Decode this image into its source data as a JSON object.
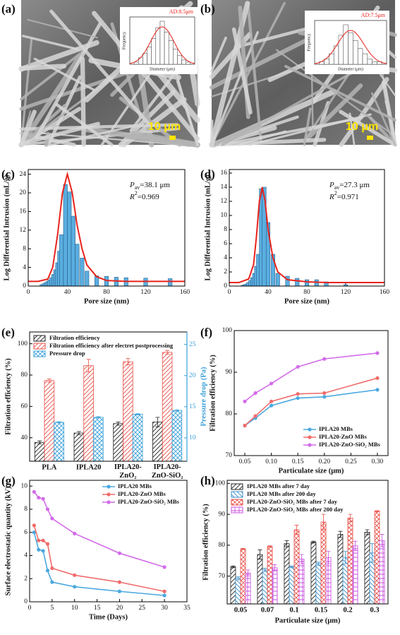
{
  "images": [
    {
      "label": "(a)",
      "scale_bar": "10 μm",
      "inset": {
        "annotation": "AD:8.5μm",
        "x_label": "Diameter (μm)",
        "y_label": "Frequency",
        "values": [
          1,
          3,
          5,
          8,
          12,
          17,
          20,
          15,
          11,
          7,
          4,
          2,
          1
        ]
      }
    },
    {
      "label": "(b)",
      "scale_bar": "10 μm",
      "inset": {
        "annotation": "AD:7.5μm",
        "x_label": "Diameter (μm)",
        "y_label": "Frequency",
        "values": [
          1,
          2,
          4,
          7,
          11,
          15,
          12,
          9,
          6,
          4,
          2,
          1,
          1
        ]
      }
    }
  ],
  "chart_data": [
    {
      "type": "bar",
      "label": "(c)",
      "x_label": "Pore size (nm)",
      "y_label": "Log Differential Intrusion (mL/g)",
      "color": "#5aaee0",
      "x": [
        14,
        16,
        18,
        20,
        22,
        24,
        26,
        28,
        30,
        32,
        34,
        38,
        42,
        46,
        50,
        55,
        60,
        70,
        80,
        90,
        100,
        120,
        145
      ],
      "values": [
        0.3,
        0.5,
        0.7,
        1,
        1.3,
        1.8,
        2.5,
        3.5,
        5,
        7.5,
        11,
        21.8,
        20.2,
        15,
        9,
        6,
        3.2,
        2.2,
        2.1,
        1.9,
        1.8,
        1.7,
        1.6
      ],
      "fit": {
        "color": "#e8231d",
        "x": [
          0,
          10,
          20,
          25,
          30,
          35,
          40,
          45,
          50,
          55,
          60,
          70,
          80,
          100,
          160
        ],
        "values": [
          1,
          1,
          1.5,
          4,
          11,
          20,
          24,
          20,
          13,
          8,
          4.5,
          2,
          1.2,
          1,
          1
        ]
      },
      "annotations": [
        {
          "main": "P",
          "sub": "av",
          "rest": "=38.1 μm"
        },
        {
          "main": "R",
          "sup": "2",
          "rest": "=0.969"
        }
      ],
      "xlim": [
        0,
        160
      ],
      "xticks": [
        0,
        40,
        80,
        120,
        160
      ],
      "ylim": [
        0,
        25
      ],
      "yticks": [
        0,
        4,
        8,
        12,
        16,
        20,
        24
      ]
    },
    {
      "type": "bar",
      "label": "(d)",
      "x_label": "Pore size (nm)",
      "y_label": "Log Differential Intrusion (mL/g)",
      "color": "#5aaee0",
      "x": [
        14,
        16,
        18,
        20,
        22,
        24,
        26,
        28,
        30,
        33,
        36,
        40,
        45,
        50,
        60,
        70,
        80,
        90,
        100,
        120
      ],
      "values": [
        0.1,
        0.2,
        0.3,
        0.5,
        0.8,
        1.2,
        1.8,
        2.8,
        4.5,
        13.8,
        14,
        9,
        4.5,
        1.8,
        1.4,
        1.1,
        0.9,
        0.9,
        0.6,
        0.2
      ],
      "fit": {
        "color": "#e8231d",
        "x": [
          0,
          10,
          20,
          25,
          28,
          31,
          34,
          37,
          40,
          45,
          50,
          60,
          80,
          100,
          160
        ],
        "values": [
          0.5,
          0.5,
          1,
          3,
          7,
          12,
          14,
          12,
          8,
          4,
          2,
          0.9,
          0.6,
          0.5,
          0.5
        ]
      },
      "annotations": [
        {
          "main": "P",
          "sub": "av",
          "rest": "=27.3 μm"
        },
        {
          "main": "R",
          "sup": "2",
          "rest": "=0.971"
        }
      ],
      "xlim": [
        0,
        160
      ],
      "xticks": [
        0,
        40,
        80,
        120,
        160
      ],
      "ylim": [
        0,
        16.5
      ],
      "yticks": [
        0,
        2,
        4,
        6,
        8,
        10,
        12,
        14,
        16
      ]
    },
    {
      "type": "grouped_bar",
      "label": "(e)",
      "y_label": "Filtration efficiency (%)",
      "y2_label": "Pressure drop (Pa)",
      "y2_color": "#3aa0d8",
      "legend": "top-left",
      "categories": [
        "PLA",
        "IPLA20",
        "IPLA20-ZnO₂",
        "IPLA20-ZnO-SiO₂"
      ],
      "series": [
        {
          "name": "Filtration efficiency",
          "color": "#222222",
          "pattern": "diagonal",
          "values": [
            37,
            43,
            49,
            50
          ],
          "errors": [
            1,
            1,
            1,
            3
          ]
        },
        {
          "name": "Filtration efficiency after electret postprocessing",
          "color": "#e8524a",
          "pattern": "diagonal",
          "values": [
            76.5,
            86,
            88.5,
            94.5
          ],
          "errors": [
            1,
            4,
            2,
            1.2
          ]
        },
        {
          "name": "Pressure drop",
          "color": "#3aa0d8",
          "pattern": "cross",
          "axis": "y2",
          "values": [
            12.5,
            13.3,
            13.8,
            14.4
          ],
          "errors": [
            0.1,
            0.1,
            0.1,
            0.1
          ]
        }
      ],
      "ylim": [
        25,
        107.5
      ],
      "yticks": [
        40,
        60,
        80,
        100
      ],
      "y2lim": [
        6.25,
        27
      ],
      "y2ticks": [
        10,
        15,
        20,
        25
      ]
    },
    {
      "type": "line",
      "label": "(f)",
      "x_label": "Particulate size (μm)",
      "y_label": "Filtration efficiency (%)",
      "legend": "bottom-right",
      "x": [
        0.05,
        0.07,
        0.1,
        0.15,
        0.2,
        0.3
      ],
      "series": [
        {
          "name": "IPLA20 MBs",
          "color": "#4aa8e0",
          "values": [
            77.2,
            79,
            82,
            83.8,
            84.1,
            85.8
          ]
        },
        {
          "name": "IPLA20-ZnO MBs",
          "color": "#f06c6c",
          "values": [
            77.2,
            79.5,
            83,
            84.8,
            85,
            88.6
          ]
        },
        {
          "name": "IPLA20-ZnO-SiO₂ MBs",
          "color": "#d36bea",
          "values": [
            83,
            85,
            87.3,
            91.3,
            93.2,
            94.6
          ]
        }
      ],
      "xlim": [
        0.03,
        0.32
      ],
      "xticks": [
        0.05,
        {
          "value": 0.1,
          "label": "0.10"
        },
        0.15,
        {
          "value": 0.2,
          "label": "0.20"
        },
        0.25,
        {
          "value": 0.3,
          "label": "0.30"
        }
      ],
      "ylim": [
        70,
        100
      ],
      "yticks": [
        70,
        80,
        90,
        100
      ]
    },
    {
      "type": "line",
      "label": "(g)",
      "x_label": "Time (Days)",
      "y_label": "Surface electrostatic quantity (kV)",
      "legend": "top-right",
      "x": [
        1,
        2,
        3,
        4,
        5,
        10,
        20,
        30
      ],
      "series": [
        {
          "name": "IPLA20 MBs",
          "color": "#4aa8e0",
          "values": [
            6,
            4.5,
            4.4,
            2.7,
            1.7,
            1.3,
            0.9,
            0.55
          ]
        },
        {
          "name": "IPLA20-ZnO MBs",
          "color": "#f06c6c",
          "values": [
            6.6,
            5.3,
            5.3,
            5,
            2.9,
            2.3,
            1.7,
            0.9
          ]
        },
        {
          "name": "IPLA20-ZnO-SiO₂ MBs",
          "color": "#d36bea",
          "values": [
            9.5,
            9,
            8.9,
            8,
            7.2,
            5.9,
            4.2,
            3
          ]
        }
      ],
      "xlim": [
        0,
        35
      ],
      "xticks": [
        0,
        5,
        10,
        15,
        20,
        25,
        30,
        35
      ],
      "ylim": [
        0,
        10.5
      ],
      "yticks": [
        0,
        2,
        4,
        6,
        8,
        10
      ]
    },
    {
      "type": "grouped_bar",
      "label": "(h)",
      "x_label": "Particulate size (μm)",
      "y_label": "Filtration efficiency (%)",
      "legend": "top-left",
      "categories": [
        "0.05",
        "0.07",
        "0.1",
        "0.15",
        "0.2",
        "0.3"
      ],
      "series": [
        {
          "name": "IPLA20 MBs after 7 day",
          "color": "#222222",
          "pattern": "diagonal",
          "values": [
            73,
            77,
            80.5,
            81,
            83.5,
            84.2
          ],
          "errors": [
            0.3,
            1.5,
            1,
            0.3,
            1,
            0.8
          ]
        },
        {
          "name": "IPLA20 MBs after 200 day",
          "color": "#3a8fc8",
          "pattern": "back",
          "values": [
            69.3,
            72,
            73,
            74,
            76,
            77.5
          ],
          "errors": [
            0.5,
            0.5,
            0.3,
            0.5,
            2,
            3
          ]
        },
        {
          "name": "IPLA20-ZnO-SiO₂ MBs after 7 day",
          "color": "#e8524a",
          "pattern": "cross",
          "values": [
            78.8,
            79.6,
            85,
            87.5,
            88.8,
            91
          ],
          "errors": [
            0.2,
            0.2,
            1.5,
            2.5,
            1.2,
            0.2
          ]
        },
        {
          "name": "IPLA20-ZnO-SiO₂ MBs after 200 day",
          "color": "#c850e0",
          "pattern": "grid",
          "values": [
            71,
            72.7,
            75.5,
            76,
            79.8,
            81.5
          ],
          "errors": [
            1,
            1,
            1.5,
            2,
            1.5,
            2
          ]
        }
      ],
      "ylim": [
        61,
        101
      ],
      "yticks": [
        70,
        80,
        90,
        100
      ]
    }
  ]
}
